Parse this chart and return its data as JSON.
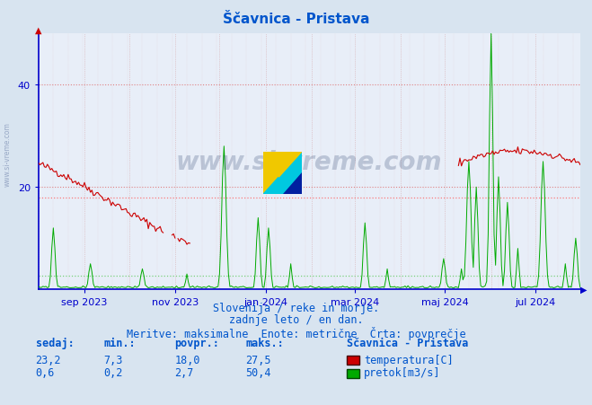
{
  "title": "Ščavnica - Pristava",
  "subtitle1": "Slovenija / reke in morje.",
  "subtitle2": "zadnje leto / en dan.",
  "subtitle3": "Meritve: maksimalne  Enote: metrične  Črta: povprečje",
  "bg_color": "#d8e4f0",
  "plot_bg_color": "#e8eef8",
  "temp_color": "#cc0000",
  "flow_color": "#00aa00",
  "avg_temp_color": "#ff6666",
  "avg_flow_color": "#66cc66",
  "axis_color": "#0000cc",
  "title_color": "#0055cc",
  "text_color": "#0055cc",
  "ylim": [
    0,
    50
  ],
  "temp_avg": 18.0,
  "flow_avg": 2.7,
  "temp_min": 7.3,
  "temp_max": 27.5,
  "temp_current": 23.2,
  "flow_min": 0.2,
  "flow_max": 50.4,
  "flow_current": 0.6,
  "watermark": "www.si-vreme.com",
  "legend_title": "Ščavnica - Pristava",
  "legend_temp": "temperatura[C]",
  "legend_flow": "pretok[m3/s]",
  "col_sedaj": "sedaj:",
  "col_min": "min.:",
  "col_povpr": "povpr.:",
  "col_maks": "maks.:",
  "figsize": [
    6.59,
    4.52
  ],
  "dpi": 100
}
